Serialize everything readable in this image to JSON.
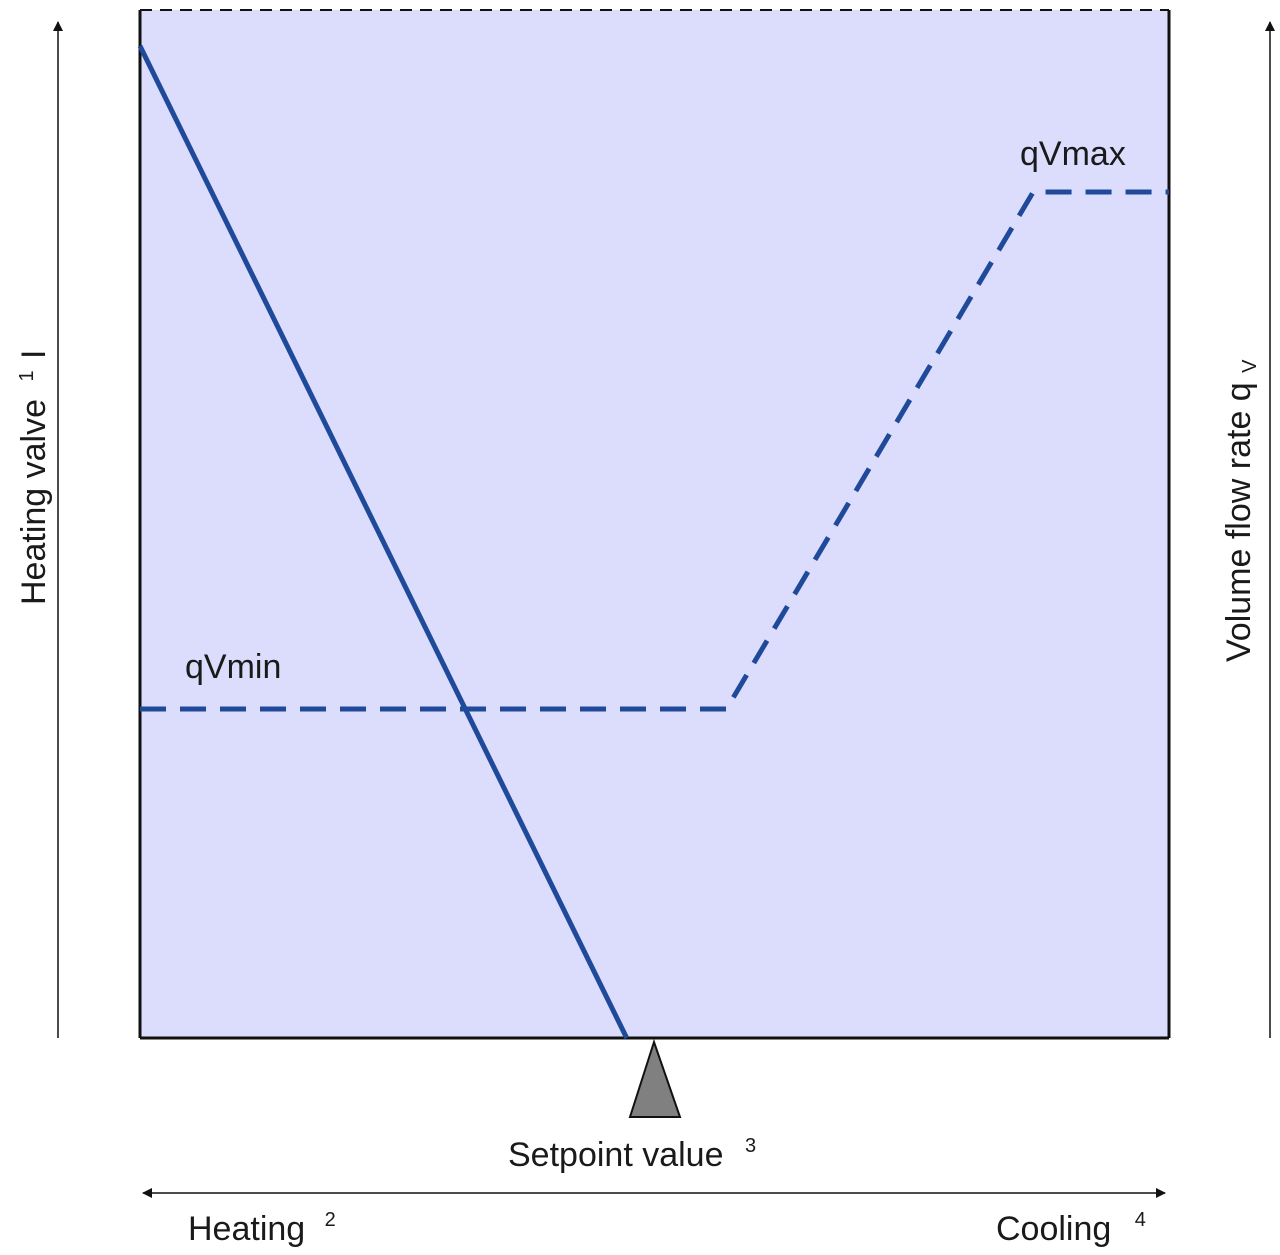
{
  "colors": {
    "panel_fill": "#dcdcfc",
    "panel_border": "#111111",
    "curve": "#1f4a9a",
    "marker_fill": "#808080"
  },
  "labels": {
    "left_axis": "Heating valve",
    "left_axis_sup": "1",
    "left_axis_sym": "I",
    "right_axis": "Volume flow rate q",
    "right_axis_sub": "V",
    "qvmin": "qVmin",
    "qvmax": "qVmax",
    "setpoint": "Setpoint value",
    "setpoint_sup": "3",
    "heating": "Heating",
    "heating_sup": "2",
    "cooling": "Cooling",
    "cooling_sup": "4"
  },
  "chart_data": {
    "type": "line",
    "x_direction": "Heating (left) to Cooling (right)",
    "series": [
      {
        "style": "solid",
        "axis": "left",
        "points": [
          [
            0,
            0.965
          ],
          [
            0.473,
            0
          ]
        ]
      },
      {
        "style": "dashed",
        "axis": "right",
        "points": [
          [
            0,
            0.32
          ],
          [
            0.57,
            0.32
          ],
          [
            0.868,
            0.823
          ],
          [
            1,
            0.823
          ]
        ]
      }
    ],
    "setpoint_x": 0.5
  }
}
